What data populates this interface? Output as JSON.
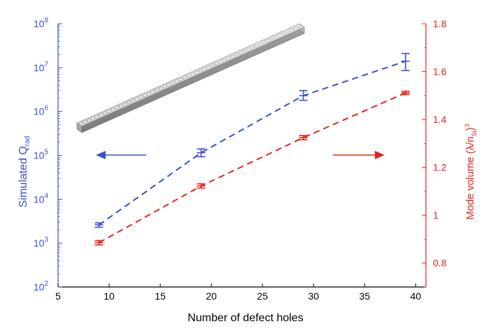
{
  "chart_data": {
    "type": "line",
    "xlabel": "Number of defect holes",
    "ylabel_left": {
      "main": "Simulated Q",
      "sub": "rad"
    },
    "ylabel_right": {
      "main": "Mode volume (λ/n",
      "sub": "Si",
      "close": ")",
      "sup": "3"
    },
    "xlim": [
      5,
      41
    ],
    "x_ticks": [
      5,
      10,
      15,
      20,
      25,
      30,
      35,
      40
    ],
    "ylim_left": [
      100,
      100000000
    ],
    "y_left_scale": "log",
    "y_left_ticks": [
      {
        "base": "10",
        "exp": "2",
        "value": 100
      },
      {
        "base": "10",
        "exp": "3",
        "value": 1000
      },
      {
        "base": "10",
        "exp": "4",
        "value": 10000
      },
      {
        "base": "10",
        "exp": "5",
        "value": 100000
      },
      {
        "base": "10",
        "exp": "6",
        "value": 1000000
      },
      {
        "base": "10",
        "exp": "7",
        "value": 10000000
      },
      {
        "base": "10",
        "exp": "8",
        "value": 100000000
      }
    ],
    "ylim_right": [
      0.7,
      1.8
    ],
    "y_right_ticks": [
      "0.8",
      "1",
      "1.2",
      "1.4",
      "1.6",
      "1.8"
    ],
    "grid": false,
    "series": [
      {
        "axis": "left",
        "color": "#3a4fd0",
        "x": [
          9,
          19,
          29,
          39
        ],
        "y": [
          2600,
          115000,
          2300000,
          14000000
        ],
        "y_low": [
          2300,
          93000,
          1800000,
          8600000
        ],
        "y_high": [
          2900,
          140000,
          3000000,
          21000000
        ]
      },
      {
        "axis": "right",
        "color": "#e8231b",
        "x": [
          9,
          19,
          29,
          39
        ],
        "y": [
          0.885,
          1.122,
          1.324,
          1.511
        ],
        "y_low": [
          0.876,
          1.113,
          1.315,
          1.504
        ],
        "y_high": [
          0.894,
          1.131,
          1.333,
          1.518
        ]
      }
    ],
    "arrows": [
      {
        "direction": "left",
        "color": "#3a4fd0"
      },
      {
        "direction": "right",
        "color": "#e8231b"
      }
    ],
    "inset": "photonic-crystal-nanobeam-with-hole-array"
  },
  "colors": {
    "left_axis": "#3a4fd0",
    "right_axis": "#e8231b",
    "bottom_axis": "#000000"
  }
}
